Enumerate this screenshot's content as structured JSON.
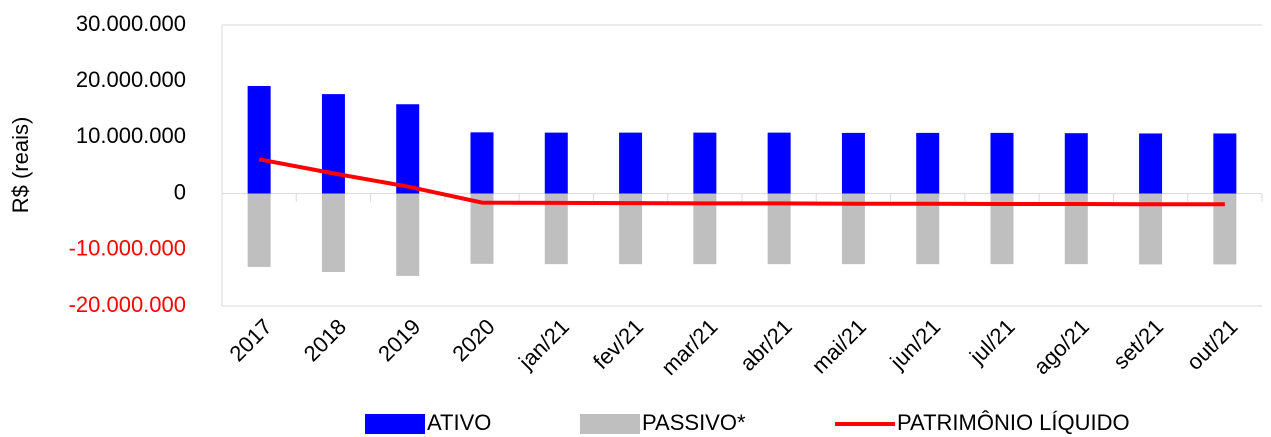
{
  "chart_data": {
    "type": "bar_line",
    "y_label": "R$ (reais)",
    "categories": [
      "2017",
      "2018",
      "2019",
      "2020",
      "jan/21",
      "fev/21",
      "mar/21",
      "abr/21",
      "mai/21",
      "jun/21",
      "jul/21",
      "ago/21",
      "set/21",
      "out/21"
    ],
    "series": [
      {
        "name": "ATIVO",
        "color": "#0000ff",
        "kind": "bar",
        "values": [
          19150000,
          17700000,
          15900000,
          10900000,
          10850000,
          10850000,
          10850000,
          10850000,
          10800000,
          10800000,
          10800000,
          10750000,
          10700000,
          10700000
        ]
      },
      {
        "name": "PASSIVO*",
        "color": "#bfbfbf",
        "kind": "bar",
        "values": [
          -13050000,
          -13950000,
          -14650000,
          -12500000,
          -12550000,
          -12550000,
          -12550000,
          -12550000,
          -12550000,
          -12550000,
          -12550000,
          -12550000,
          -12600000,
          -12600000
        ]
      },
      {
        "name": "PATRIMÔNIO LÍQUIDO",
        "color": "#ff0000",
        "kind": "line",
        "values": [
          6100000,
          3600000,
          1250000,
          -1600000,
          -1650000,
          -1700000,
          -1750000,
          -1750000,
          -1800000,
          -1800000,
          -1850000,
          -1850000,
          -1900000,
          -1900000
        ]
      }
    ],
    "ylim": [
      -20000000,
      30000000
    ],
    "yticks": [
      {
        "value": -20000000,
        "label": "-20.000.000"
      },
      {
        "value": -10000000,
        "label": "-10.000.000"
      },
      0,
      {
        "value": 10000000,
        "label": "10.000.000"
      },
      {
        "value": 20000000,
        "label": "20.000.000"
      },
      {
        "value": 30000000,
        "label": "30.000.000"
      }
    ],
    "negative_tick_color": "#ff0000"
  }
}
